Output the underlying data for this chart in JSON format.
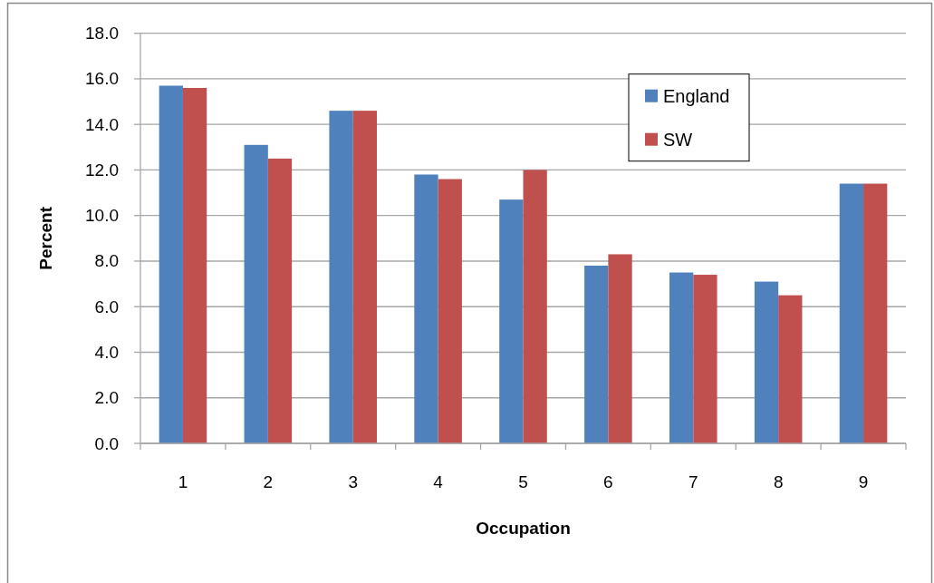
{
  "chart_data": {
    "type": "bar",
    "xlabel": "Occupation",
    "ylabel": "Percent",
    "categories": [
      "1",
      "2",
      "3",
      "4",
      "5",
      "6",
      "7",
      "8",
      "9"
    ],
    "series": [
      {
        "name": "England",
        "color": "#4f81bd",
        "values": [
          15.7,
          13.1,
          14.6,
          11.8,
          10.7,
          7.8,
          7.5,
          7.1,
          11.4
        ]
      },
      {
        "name": "SW",
        "color": "#c0504d",
        "values": [
          15.6,
          12.5,
          14.6,
          11.6,
          12.0,
          8.3,
          7.4,
          6.5,
          11.4
        ]
      }
    ],
    "ylim": [
      0,
      18
    ],
    "yticks": [
      {
        "value": 0,
        "label": "0.0"
      },
      {
        "value": 2,
        "label": "2.0"
      },
      {
        "value": 4,
        "label": "4.0"
      },
      {
        "value": 6,
        "label": "6.0"
      },
      {
        "value": 8,
        "label": "8.0"
      },
      {
        "value": 10,
        "label": "10.0"
      },
      {
        "value": 12,
        "label": "12.0"
      },
      {
        "value": 14,
        "label": "14.0"
      },
      {
        "value": 16,
        "label": "16.0"
      },
      {
        "value": 18,
        "label": "18.0"
      }
    ],
    "grid": "y",
    "legend": "top right"
  }
}
